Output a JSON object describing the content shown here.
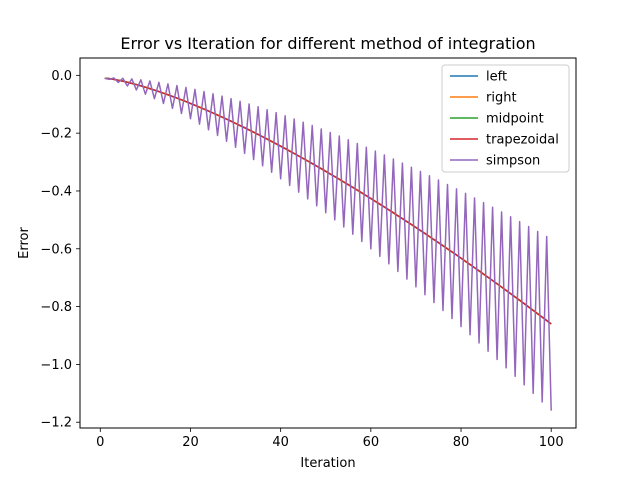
{
  "chart_data": {
    "type": "line",
    "title": "Error vs Iteration for different method of integration",
    "xlabel": "Iteration",
    "ylabel": "Error",
    "xlim": [
      -4.5,
      105.5
    ],
    "ylim": [
      -1.22,
      0.06
    ],
    "xticks": [
      0,
      20,
      40,
      60,
      80,
      100
    ],
    "xtick_labels": [
      "0",
      "20",
      "40",
      "60",
      "80",
      "100"
    ],
    "yticks": [
      0.0,
      -0.2,
      -0.4,
      -0.6,
      -0.8,
      -1.0,
      -1.2
    ],
    "ytick_labels": [
      "0.0",
      "−0.2",
      "−0.4",
      "−0.6",
      "−0.8",
      "−1.0",
      "−1.2"
    ],
    "grid": false,
    "legend_position": "upper right",
    "x": {
      "start": 1,
      "end": 100
    },
    "series": [
      {
        "name": "left",
        "color": "#1f77b4",
        "formula": "smooth",
        "a": -0.0086
      },
      {
        "name": "right",
        "color": "#ff7f0e",
        "formula": "smooth",
        "a": -0.0086
      },
      {
        "name": "midpoint",
        "color": "#2ca02c",
        "formula": "smooth",
        "a": -0.0086
      },
      {
        "name": "trapezoidal",
        "color": "#d62728",
        "formula": "smooth",
        "a": -0.0086
      },
      {
        "name": "simpson",
        "color": "#9467bd",
        "formula": "oscillating",
        "even_end": -1.155,
        "odd_end": -0.565
      }
    ],
    "sample_points": [
      {
        "x": 1,
        "y": -0.01
      },
      {
        "x": 20,
        "y": -0.11
      },
      {
        "x": 40,
        "y": -0.26
      },
      {
        "x": 60,
        "y": -0.44
      },
      {
        "x": 80,
        "y": -0.64
      },
      {
        "x": 100,
        "y": -0.86
      }
    ]
  }
}
